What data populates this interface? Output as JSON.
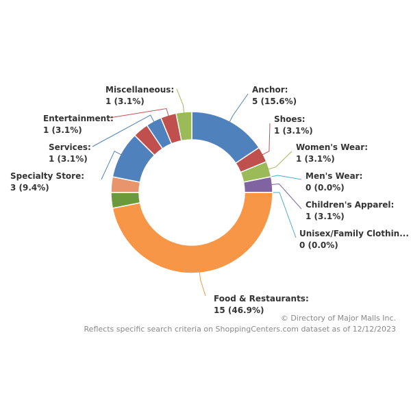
{
  "chart_data": {
    "type": "donut",
    "categories": [
      "Anchor:",
      "Shoes:",
      "Women's Wear:",
      "Men's Wear:",
      "Children's Apparel:",
      "Unisex/Family Clothin...",
      "Food & Restaurants:",
      null,
      null,
      "Specialty Store:",
      null,
      "Services:",
      "Entertainment:",
      "Miscellaneous:"
    ],
    "values": [
      5,
      1,
      1,
      0,
      1,
      0,
      15,
      1,
      1,
      3,
      1,
      1,
      1,
      1
    ],
    "value_labels": [
      "5 (15.6%)",
      "1 (3.1%)",
      "1 (3.1%)",
      "0 (0.0%)",
      "1 (3.1%)",
      "0 (0.0%)",
      "15 (46.9%)",
      null,
      null,
      "3 (9.4%)",
      null,
      "1 (3.1%)",
      "1 (3.1%)",
      "1 (3.1%)"
    ],
    "colors": [
      "#4f81bd",
      "#c0504d",
      "#9bbb59",
      "#4bacc6",
      "#8064a2",
      "#4bacc6",
      "#f79646",
      "#6a9a3a",
      "#e8956d",
      "#4f81bd",
      "#c0504d",
      "#4f81bd",
      "#c0504d",
      "#9bbb59"
    ],
    "credit": "© Directory of Major Malls Inc.",
    "note": "Reflects specific search criteria on ShoppingCenters.com dataset as of 12/12/2023"
  }
}
